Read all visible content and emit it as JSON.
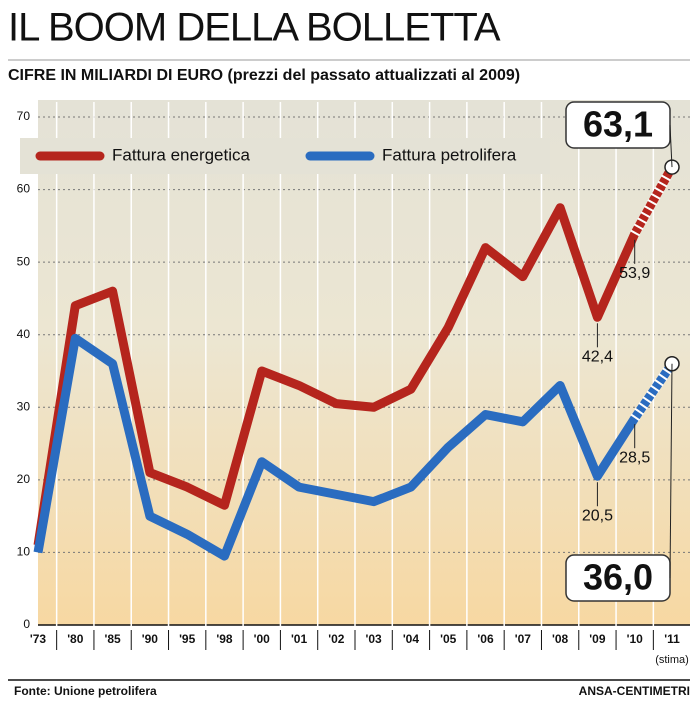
{
  "chart_data": {
    "type": "line",
    "title": "IL BOOM DELLA BOLLETTA",
    "subtitle": "CIFRE IN MILIARDI DI EURO (prezzi del passato attualizzati al 2009)",
    "categories": [
      "'73",
      "'80",
      "'85",
      "'90",
      "'95",
      "'98",
      "'00",
      "'01",
      "'02",
      "'03",
      "'04",
      "'05",
      "'06",
      "'07",
      "'08",
      "'09",
      "'10",
      "'11"
    ],
    "x_note": "(stima)",
    "series": [
      {
        "name": "Fattura energetica",
        "color": "#b5251d",
        "values": [
          11,
          44,
          46,
          21,
          19,
          16.5,
          35,
          33,
          30.5,
          30,
          32.5,
          41,
          52,
          48,
          57.5,
          42.4,
          53.9,
          63.1
        ],
        "value_labels": [
          null,
          null,
          null,
          null,
          null,
          null,
          null,
          null,
          null,
          null,
          null,
          null,
          null,
          null,
          null,
          "42,4",
          "53,9",
          "63,1"
        ]
      },
      {
        "name": "Fattura petrolifera",
        "color": "#2a6cc0",
        "values": [
          10,
          39.5,
          36,
          15,
          12.5,
          9.5,
          22.5,
          19,
          18,
          17,
          19,
          24.5,
          29,
          28,
          33,
          20.5,
          28.5,
          36.0
        ],
        "value_labels": [
          null,
          null,
          null,
          null,
          null,
          null,
          null,
          null,
          null,
          null,
          null,
          null,
          null,
          null,
          null,
          "20,5",
          "28,5",
          "36,0"
        ]
      }
    ],
    "ylim": [
      0,
      70
    ],
    "yticks": [
      0,
      10,
      20,
      30,
      40,
      50,
      60,
      70
    ],
    "grid": true,
    "legend": "top-left",
    "source": "Fonte: Unione petrolifera",
    "credit": "ANSA-CENTIMETRI"
  }
}
